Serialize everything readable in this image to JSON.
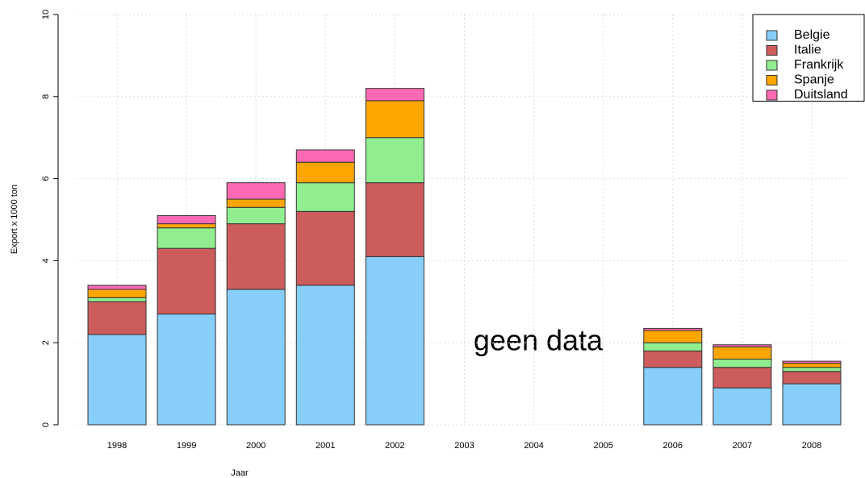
{
  "chart_data": {
    "type": "stacked-bar",
    "xlabel": "Jaar",
    "ylabel": "Export x 1000 ton",
    "annotation": "geen data",
    "categories": [
      "1998",
      "1999",
      "2000",
      "2001",
      "2002",
      "2003",
      "2004",
      "2005",
      "2006",
      "2007",
      "2008"
    ],
    "series": [
      {
        "name": "Belgie",
        "color": "#87cefa",
        "values": [
          2.2,
          2.7,
          3.3,
          3.4,
          4.1,
          0,
          0,
          0,
          1.4,
          0.9,
          1.0
        ]
      },
      {
        "name": "Italie",
        "color": "#cd5c5c",
        "values": [
          0.8,
          1.6,
          1.6,
          1.8,
          1.8,
          0,
          0,
          0,
          0.4,
          0.5,
          0.3
        ]
      },
      {
        "name": "Frankrijk",
        "color": "#90ee90",
        "values": [
          0.1,
          0.5,
          0.4,
          0.7,
          1.1,
          0,
          0,
          0,
          0.2,
          0.2,
          0.1
        ]
      },
      {
        "name": "Spanje",
        "color": "#ffa500",
        "values": [
          0.2,
          0.1,
          0.2,
          0.5,
          0.9,
          0,
          0,
          0,
          0.3,
          0.3,
          0.1
        ]
      },
      {
        "name": "Duitsland",
        "color": "#ff69b4",
        "values": [
          0.1,
          0.2,
          0.4,
          0.3,
          0.3,
          0,
          0,
          0,
          0.05,
          0.05,
          0.05
        ]
      }
    ],
    "ylim": [
      0,
      10
    ],
    "yticks": [
      0,
      2,
      4,
      6,
      8,
      10
    ],
    "grid": true,
    "legend": "topright"
  }
}
